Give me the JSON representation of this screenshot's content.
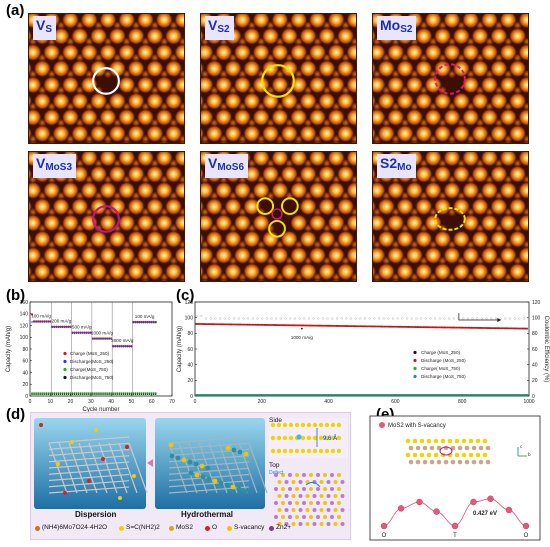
{
  "figure": {
    "panel_letters": [
      "(a)",
      "(b)",
      "(c)",
      "(d)",
      "(e)"
    ]
  },
  "panel_a": {
    "images": [
      {
        "label_main": "V",
        "label_sub": "S",
        "marker": "circle",
        "marker_color": "#ffffff"
      },
      {
        "label_main": "V",
        "label_sub": "S2",
        "marker": "circle",
        "marker_color": "#f2e200"
      },
      {
        "label_main": "Mo",
        "label_sub": "S2",
        "marker": "dashed-circle",
        "marker_color": "#e0167a"
      },
      {
        "label_main": "V",
        "label_sub": "MoS3",
        "marker": "circle",
        "marker_color": "#c0178a"
      },
      {
        "label_main": "V",
        "label_sub": "MoS6",
        "marker": "triple-circle",
        "marker_color": "#f2e200"
      },
      {
        "label_main": "S2",
        "label_sub": "Mo",
        "marker": "dashed-circle",
        "marker_color": "#f2e200"
      }
    ]
  },
  "chart_data": [
    {
      "id": "b",
      "type": "scatter",
      "xlabel": "Cycle number",
      "ylabel": "Capacity (mAh/g)",
      "xlim": [
        0,
        70
      ],
      "ylim": [
        0,
        160
      ],
      "xticks": [
        "0",
        "10",
        "20",
        "30",
        "40",
        "50",
        "60",
        "70"
      ],
      "yticks": [
        "0",
        "20",
        "40",
        "60",
        "80",
        "100",
        "120",
        "140",
        "160"
      ],
      "rate_labels": [
        "100 mA/g",
        "200 mA/g",
        "500 mA/g",
        "1000 mA/g",
        "2000 mA/g",
        "100 mA/g"
      ],
      "rate_levels": [
        {
          "x_start": 1,
          "x_end": 10,
          "y": 127
        },
        {
          "x_start": 11,
          "x_end": 20,
          "y": 118
        },
        {
          "x_start": 21,
          "x_end": 30,
          "y": 108
        },
        {
          "x_start": 31,
          "x_end": 40,
          "y": 98
        },
        {
          "x_start": 41,
          "x_end": 50,
          "y": 85
        },
        {
          "x_start": 51,
          "x_end": 62,
          "y": 126
        }
      ],
      "low_level_y": 5,
      "series": [
        {
          "name": "Charge (MoS_250)",
          "color": "#d01c1c"
        },
        {
          "name": "Discharge(MoS_250)",
          "color": "#2a3fd0"
        },
        {
          "name": "Charge(MoS_750)",
          "color": "#18b818"
        },
        {
          "name": "Discharge(MoS_750)",
          "color": "#1a1a1a"
        }
      ]
    },
    {
      "id": "c",
      "type": "scatter",
      "xlabel": "",
      "ylabel": "Capacity (mAh/g)",
      "y2label": "Coulombic Efficiency (%)",
      "xlim": [
        0,
        1000
      ],
      "ylim": [
        0,
        120
      ],
      "y2lim": [
        0,
        120
      ],
      "xticks": [
        "0",
        "200",
        "400",
        "600",
        "800",
        "1000"
      ],
      "yticks": [
        "0",
        "20",
        "40",
        "60",
        "80",
        "100",
        "120"
      ],
      "y2ticks": [
        "0",
        "20",
        "40",
        "60",
        "80",
        "100",
        "120"
      ],
      "annotation": "1000 mA/g",
      "capacity_start": 92,
      "capacity_end": 86,
      "efficiency": 99,
      "series": [
        {
          "name": "Charge (MoS_250)",
          "color": "#1a1a1a"
        },
        {
          "name": "Discharge (MoS_250)",
          "color": "#d01c1c"
        },
        {
          "name": "Charge( MoS_750)",
          "color": "#18b818"
        },
        {
          "name": "Discharge (MoS_750)",
          "color": "#1d8ad0"
        }
      ]
    },
    {
      "id": "e",
      "type": "line",
      "title": "MoS2 with S-vacancy",
      "xticks": [
        "O",
        "T",
        "O"
      ],
      "annotation": "0.427 eV",
      "path_points": [
        {
          "x": 0,
          "y": 0.0
        },
        {
          "x": 0.12,
          "y": 0.22
        },
        {
          "x": 0.25,
          "y": 0.3
        },
        {
          "x": 0.37,
          "y": 0.18
        },
        {
          "x": 0.5,
          "y": 0.0
        },
        {
          "x": 0.63,
          "y": 0.3
        },
        {
          "x": 0.75,
          "y": 0.34
        },
        {
          "x": 0.88,
          "y": 0.2
        },
        {
          "x": 1.0,
          "y": 0.0
        }
      ]
    }
  ],
  "panel_d": {
    "caption_left": "Dispersion",
    "caption_mid": "Hydrothermal",
    "side_label": "Side",
    "top_label": "Top",
    "defect_label": "Defect",
    "spacing_label": "9.6 Å",
    "legend": [
      {
        "label": "(NH4)6Mo7O24·4H2O",
        "color": "#c8741f"
      },
      {
        "label": "S=C(NH2)2",
        "color": "#f0d000"
      },
      {
        "label": "MoS2",
        "color": "#d5a81a"
      },
      {
        "label": "O",
        "color": "#d82020"
      },
      {
        "label": "S-vacancy",
        "color": "#f2c400"
      },
      {
        "label": "Zn2+",
        "color": "#7a3c8a"
      }
    ]
  },
  "panel_e": {
    "legend_label": "MoS2 with S-vacancy",
    "axis_c": "c",
    "axis_b": "b"
  }
}
